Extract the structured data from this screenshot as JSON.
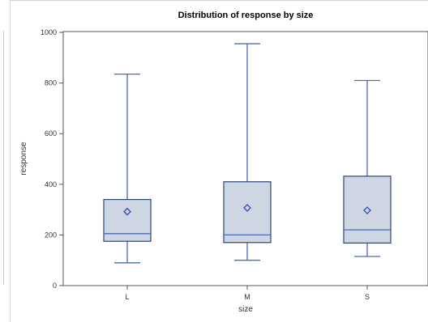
{
  "chart_data": {
    "type": "box",
    "title": "Distribution of response by size",
    "xlabel": "size",
    "ylabel": "response",
    "ylim": [
      0,
      1000
    ],
    "yticks": [
      0,
      200,
      400,
      600,
      800,
      1000
    ],
    "categories": [
      "L",
      "M",
      "S"
    ],
    "boxes": [
      {
        "category": "L",
        "min": 90,
        "q1": 175,
        "median": 205,
        "q3": 340,
        "max": 835,
        "mean": 292
      },
      {
        "category": "M",
        "min": 100,
        "q1": 170,
        "median": 200,
        "q3": 410,
        "max": 955,
        "mean": 307
      },
      {
        "category": "S",
        "min": 115,
        "q1": 168,
        "median": 220,
        "q3": 432,
        "max": 810,
        "mean": 297
      }
    ],
    "colors": {
      "box_fill": "#cfd6e3",
      "box_stroke": "#2f4673",
      "whisker": "#4a6bb5",
      "median": "#4a6bb5",
      "mean_marker": "#2b4fb0",
      "frame": "#555555"
    }
  }
}
